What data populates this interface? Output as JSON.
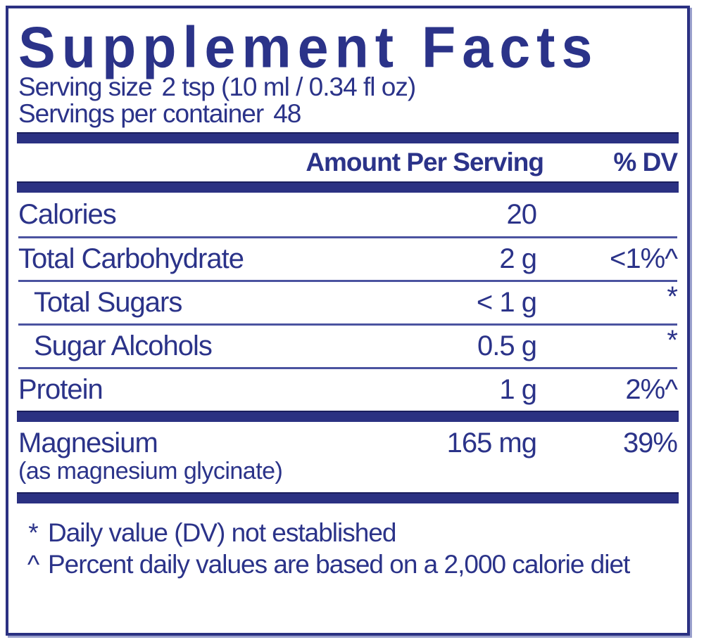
{
  "colors": {
    "navy": "#2b3389",
    "bar": "#2b3182",
    "divider": "#4b53a0"
  },
  "title": "Supplement Facts",
  "serving": {
    "size_label": "Serving size",
    "size_value": "2 tsp (10 ml / 0.34 fl oz)",
    "per_container_label": "Servings per container",
    "per_container_value": "48"
  },
  "header": {
    "amount": "Amount Per Serving",
    "dv": "% DV"
  },
  "rows": [
    {
      "name": "Calories",
      "amount": "20",
      "dv": ""
    },
    {
      "name": "Total Carbohydrate",
      "amount": "2 g",
      "dv": "<1%^"
    },
    {
      "name": "Total Sugars",
      "amount": "< 1 g",
      "dv": "*"
    },
    {
      "name": "Sugar Alcohols",
      "amount": "0.5 g",
      "dv": "*"
    },
    {
      "name": "Protein",
      "amount": "1 g",
      "dv": "2%^"
    }
  ],
  "minerals": [
    {
      "name": "Magnesium",
      "source": "(as magnesium glycinate)",
      "amount": "165 mg",
      "dv": "39%"
    }
  ],
  "footnotes": [
    {
      "marker": "*",
      "text": "Daily value (DV) not established"
    },
    {
      "marker": "^",
      "text": "Percent daily values are based on a 2,000 calorie diet"
    }
  ]
}
